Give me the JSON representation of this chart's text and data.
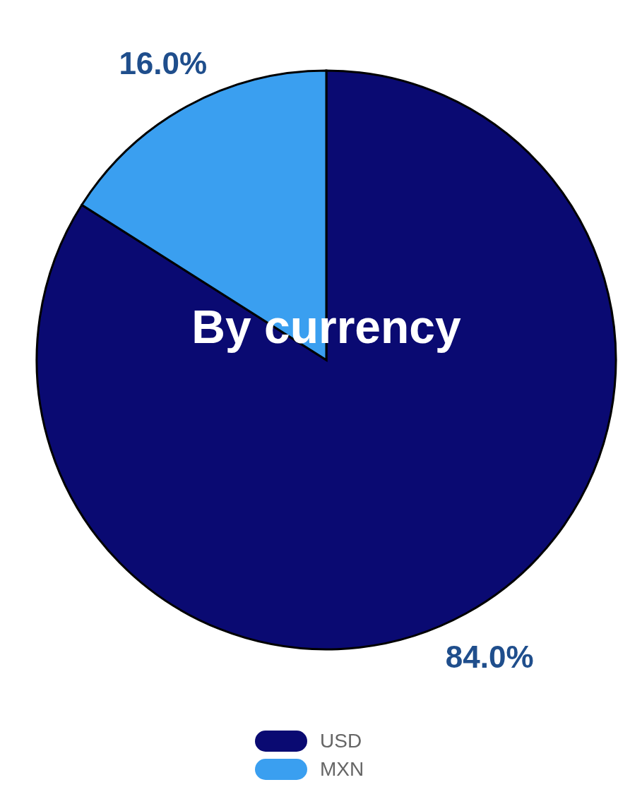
{
  "chart_data": {
    "type": "pie",
    "title": "By currency",
    "categories": [
      "USD",
      "MXN"
    ],
    "values": [
      84.0,
      16.0
    ],
    "colors": [
      "#0a0a72",
      "#3a9ff0"
    ],
    "value_labels": [
      "84.0%",
      "16.0%"
    ],
    "legend": "bottom"
  }
}
